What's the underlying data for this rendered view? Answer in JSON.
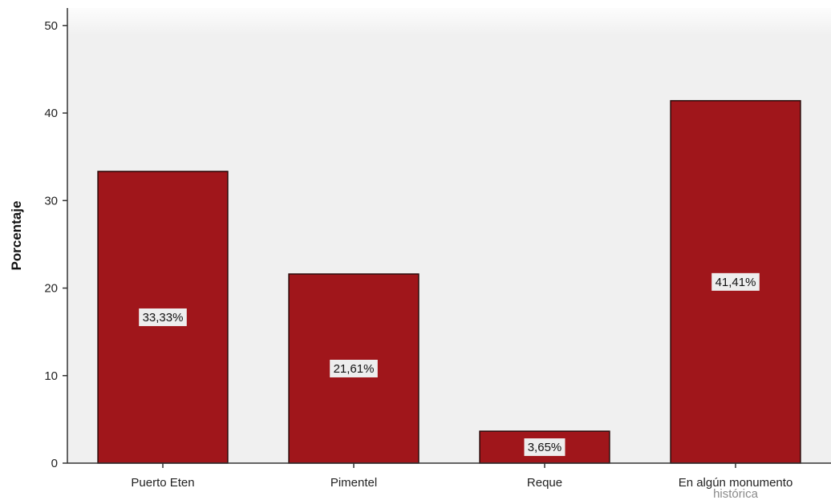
{
  "chart_data": {
    "type": "bar",
    "title": "",
    "xlabel": "",
    "ylabel": "Porcentaje",
    "ylim": [
      0,
      52
    ],
    "yticks": [
      0,
      10,
      20,
      30,
      40,
      50
    ],
    "ytick_labels": [
      "0",
      "10",
      "20",
      "30",
      "40",
      "50"
    ],
    "categories": [
      "Puerto Eten",
      "Pimentel",
      "Reque",
      "En algún monumento histórica"
    ],
    "values": [
      33.33,
      21.61,
      3.65,
      41.41
    ],
    "data_labels": [
      "33,33%",
      "21,61%",
      "3,65%",
      "41,41%"
    ],
    "grid": false,
    "legend": "none",
    "colors": {
      "bar_fill": "#a0161b",
      "bar_stroke": "#2a0a0a",
      "plot_background": "#f0f0f0",
      "label_box": "#eeeeee"
    }
  }
}
